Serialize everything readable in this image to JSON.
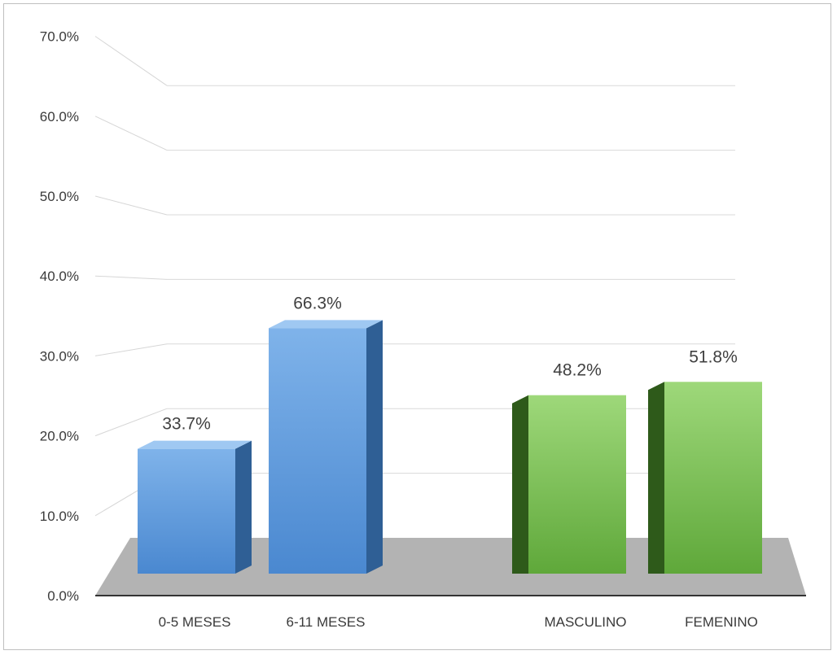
{
  "chart_data": {
    "type": "bar",
    "title": "",
    "xlabel": "",
    "ylabel": "",
    "ylim": [
      0,
      70
    ],
    "yticks": [
      "0.0%",
      "10.0%",
      "20.0%",
      "30.0%",
      "40.0%",
      "50.0%",
      "60.0%",
      "70.0%"
    ],
    "grid": true,
    "categories": [
      "0-5 MESES",
      "6-11 MESES",
      "MASCULINO",
      "FEMENINO"
    ],
    "values": [
      33.7,
      66.3,
      48.2,
      51.8
    ],
    "value_labels": [
      "33.7%",
      "66.3%",
      "48.2%",
      "51.8%"
    ],
    "bar_colors": [
      "#5b9bd5",
      "#5b9bd5",
      "#70ad47",
      "#70ad47"
    ],
    "style": "3d-column"
  }
}
